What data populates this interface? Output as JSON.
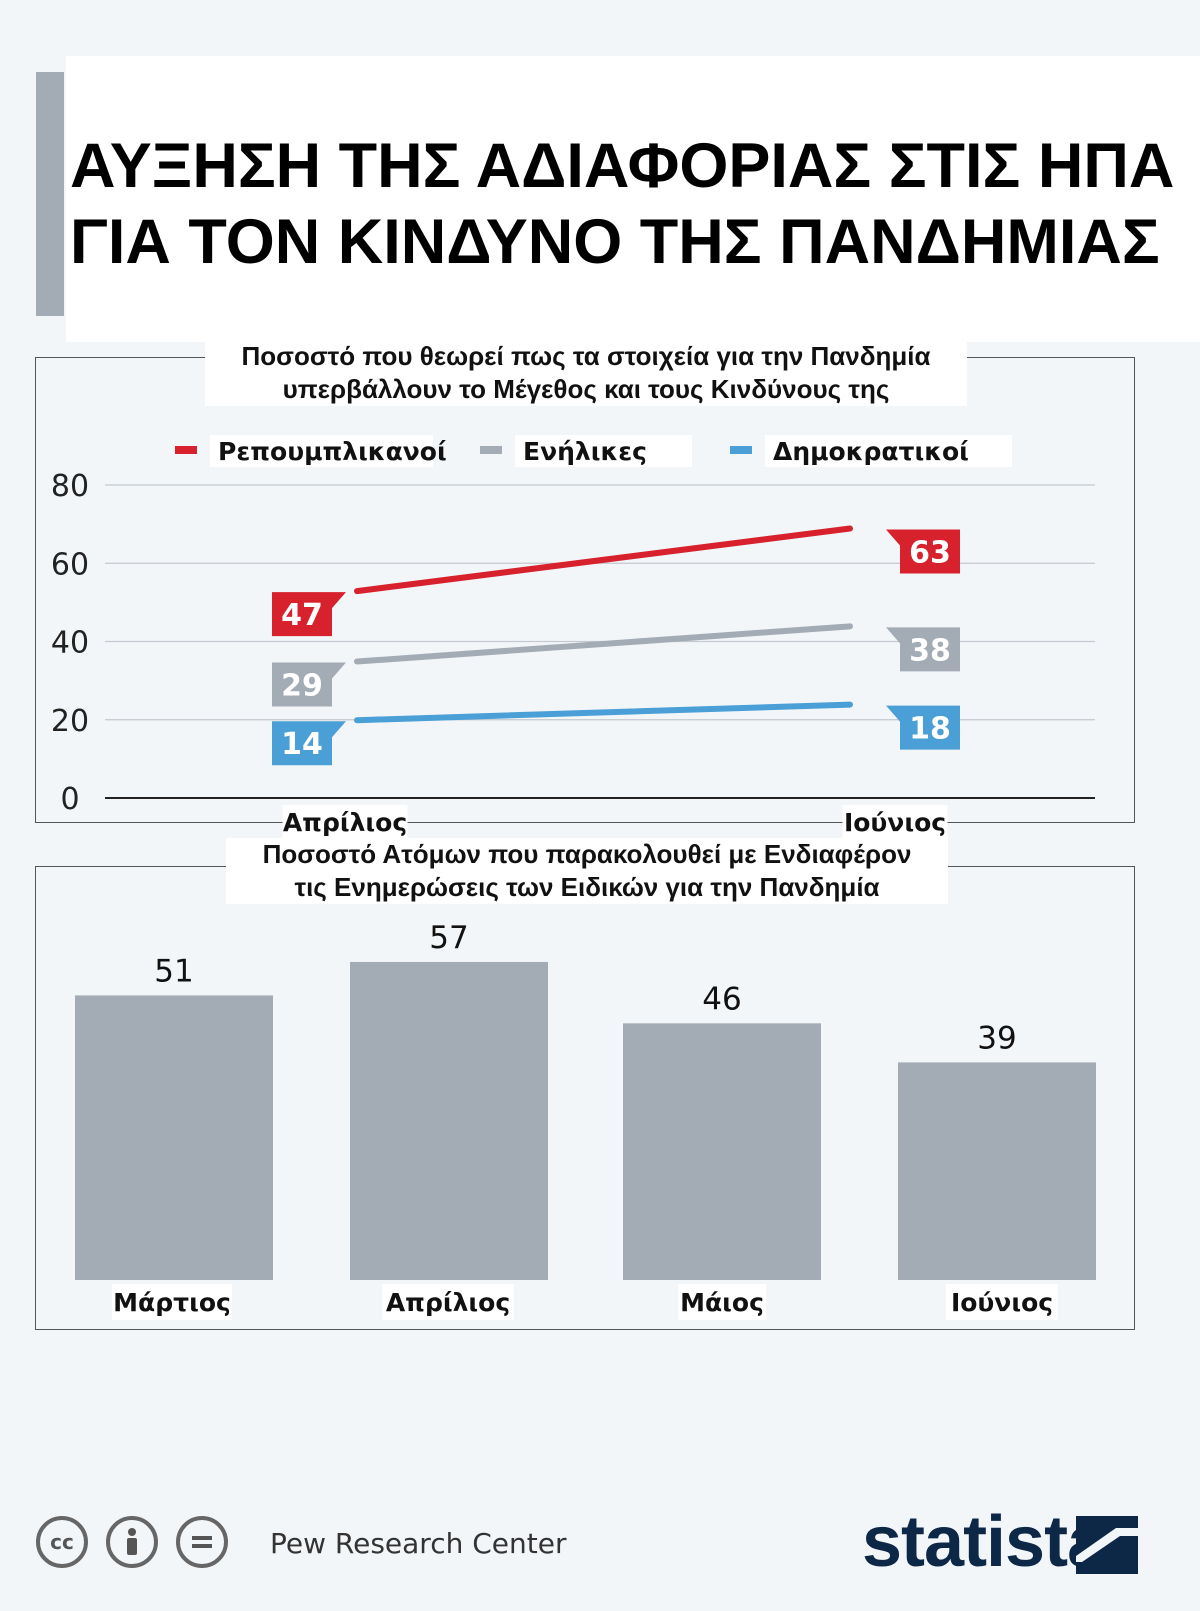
{
  "title_lines": [
    "ΑΥΞΗΣΗ ΤΗΣ ΑΔΙΑΦΟΡΙΑΣ ΣΤΙΣ ΗΠΑ",
    "ΓΙΑ ΤΟΝ ΚΙΝΔΥΝΟ ΤΗΣ ΠΑΝΔΗΜΙΑΣ"
  ],
  "chart_data": [
    {
      "type": "line",
      "title_lines": [
        "Ποσοστό που θεωρεί πως τα στοιχεία για την Πανδημία",
        "υπερβάλλουν το Μέγεθος και τους Κινδύνους της"
      ],
      "categories": [
        "Απρίλιος",
        "Ιούνιος"
      ],
      "yticks": [
        "0",
        "20",
        "40",
        "60",
        "80"
      ],
      "ylim": [
        0,
        80
      ],
      "legend_position": "top",
      "series": [
        {
          "name": "Ρεπουμπλικανοί",
          "values": [
            47,
            63
          ],
          "labels": [
            "47",
            "63"
          ],
          "color": "#d7222d"
        },
        {
          "name": "Ενήλικες",
          "values": [
            29,
            38
          ],
          "labels": [
            "29",
            "38"
          ],
          "color": "#a3acb5"
        },
        {
          "name": "Δημοκρατικοί",
          "values": [
            14,
            18
          ],
          "labels": [
            "14",
            "18"
          ],
          "color": "#4a9fd6"
        }
      ]
    },
    {
      "type": "bar",
      "title_lines": [
        "Ποσοστό Ατόμων που παρακολουθεί με Ενδιαφέρον",
        "τις Ενημερώσεις των Ειδικών για την Πανδημία"
      ],
      "categories": [
        "Μάρτιος",
        "Απρίλιος",
        "Μάιος",
        "Ιούνιος"
      ],
      "values": [
        51,
        57,
        46,
        39
      ],
      "labels": [
        "51",
        "57",
        "46",
        "39"
      ],
      "bar_color": "#a3acb5"
    }
  ],
  "footer": {
    "source": "Pew Research Center",
    "brand": "statista",
    "license_icons": [
      "cc-icon",
      "attribution-icon",
      "no-derivatives-icon"
    ]
  }
}
